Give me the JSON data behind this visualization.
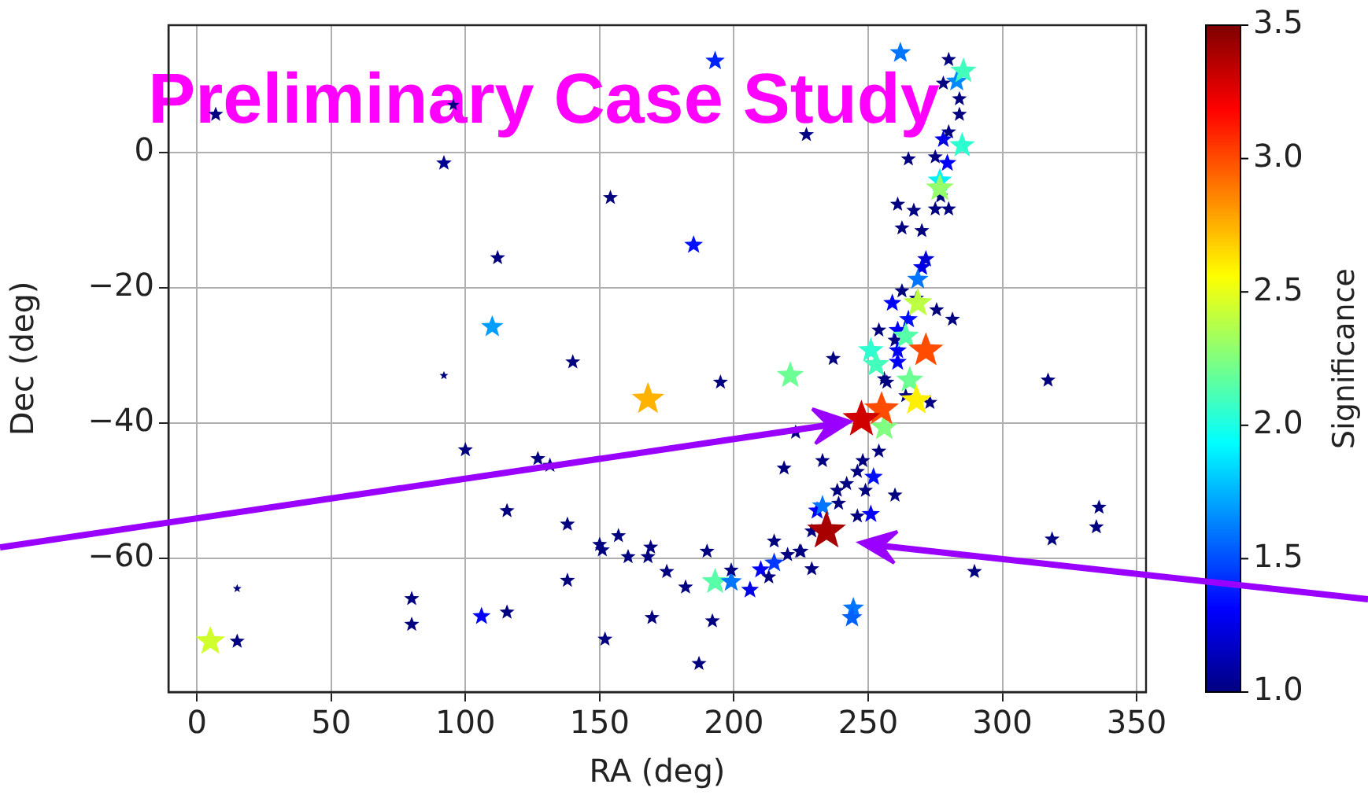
{
  "chart_data": {
    "type": "scatter",
    "xlabel": "RA (deg)",
    "ylabel": "Dec (deg)",
    "clabel": "Significance",
    "annotations": [
      "Preliminary Case Study"
    ],
    "xlim": [
      -10.6,
      353.5
    ],
    "ylim": [
      -79.8,
      18.8
    ],
    "xticks": [
      0,
      50,
      100,
      150,
      200,
      250,
      300,
      350
    ],
    "yticks": [
      {
        "value": -60,
        "label": "−60"
      },
      {
        "value": -40,
        "label": "−40"
      },
      {
        "value": -20,
        "label": "−20"
      },
      0
    ],
    "clim": [
      1,
      3.5
    ],
    "cticks": [
      {
        "value": 1,
        "label": "1.0"
      },
      {
        "value": 1.5,
        "label": "1.5"
      },
      {
        "value": 2,
        "label": "2.0"
      },
      {
        "value": 2.5,
        "label": "2.5"
      },
      {
        "value": 3,
        "label": "3.0"
      },
      {
        "value": 3.5,
        "label": "3.5"
      }
    ],
    "grid": true,
    "legend": false,
    "marker": "star",
    "series": [
      {
        "x": [
          7,
          95.5,
          92,
          112,
          110,
          193,
          262,
          227,
          154,
          185,
          92,
          140,
          195,
          168,
          221,
          237,
          100,
          115.5,
          15,
          5,
          15,
          80,
          80,
          106,
          115.5,
          127,
          131.5,
          138,
          150,
          151,
          157,
          160.6,
          169,
          168,
          175,
          182,
          190,
          193,
          199,
          199,
          138,
          152,
          169.5,
          192,
          187,
          206,
          210,
          213,
          215,
          215,
          220,
          224.5,
          229,
          231,
          218.7,
          223,
          254,
          233,
          248,
          246,
          252,
          242,
          238.5,
          260,
          249,
          239,
          233,
          251,
          246,
          229,
          225,
          289.6,
          244.5,
          244,
          317,
          336,
          335,
          318.5,
          280,
          283,
          278,
          284,
          284,
          280,
          278,
          265,
          275,
          279.5,
          277,
          261,
          267,
          275,
          280,
          262.6,
          270,
          271.5,
          270,
          268.5,
          262.6,
          268,
          275.5,
          281.4,
          259,
          265,
          254,
          261,
          260,
          261,
          261,
          264,
          273,
          256,
          257,
          285.5,
          285,
          276.7,
          276.7,
          264,
          251,
          253,
          265.5,
          256,
          268.5,
          268,
          271.5,
          255,
          247.5,
          234.5
        ],
        "values": [
          5.6,
          7,
          -1.6,
          -15.6,
          -25.8,
          13.5,
          14.7,
          2.6,
          -6.7,
          -13.7,
          -33,
          -31,
          -34,
          -36.5,
          -33,
          -30.5,
          -44,
          -53,
          -64.5,
          -72.3,
          -72.3,
          -66,
          -69.8,
          -68.6,
          -68,
          -45.3,
          -46.3,
          -55,
          -58,
          -58.8,
          -56.7,
          -59.8,
          -58.4,
          -59.8,
          -62,
          -64.3,
          -59,
          -63.5,
          -63.5,
          -61.8,
          -63.3,
          -72,
          -68.8,
          -69.3,
          -75.6,
          -64.7,
          -61.7,
          -62.8,
          -60.7,
          -57.5,
          -59.5,
          -59,
          -61.6,
          -53,
          -46.7,
          -41.4,
          -44.2,
          -45.6,
          -45.6,
          -47.2,
          -48,
          -49,
          -50,
          -50.7,
          -50,
          -51.9,
          -52.3,
          -53.5,
          -53.8,
          -56,
          -59,
          -62,
          -67.4,
          -68.8,
          -33.7,
          -52.5,
          -55.4,
          -57.2,
          13.7,
          10.5,
          10.2,
          7.9,
          5.6,
          3,
          1.9,
          -1,
          -0.7,
          -1.6,
          -6.5,
          -7.7,
          -8.6,
          -8.4,
          -8.4,
          -11.2,
          -11.6,
          -15.8,
          -17,
          -18.8,
          -20.5,
          -21.6,
          -23.3,
          -24.7,
          -22.3,
          -24.7,
          -26.3,
          -26.3,
          -27.8,
          -29.3,
          -31,
          -36,
          -37,
          -33.5,
          -34,
          12,
          1,
          -4.2,
          -5.3,
          -27.2,
          -29.3,
          -31.4,
          -33.7,
          -40.7,
          -22.3,
          -36.7,
          -29.3,
          -38,
          -39.5,
          -56
        ],
        "sizes": [
          0.15,
          0.1,
          0.16,
          0.15,
          0.33,
          0.25,
          0.3,
          0.15,
          0.15,
          0.23,
          0.05,
          0.15,
          0.15,
          0.7,
          0.49,
          0.15,
          0.15,
          0.15,
          0.05,
          0.58,
          0.15,
          0.15,
          0.15,
          0.22,
          0.15,
          0.15,
          0.15,
          0.15,
          0.15,
          0.15,
          0.15,
          0.15,
          0.15,
          0.15,
          0.15,
          0.15,
          0.15,
          0.47,
          0.3,
          0.15,
          0.15,
          0.15,
          0.15,
          0.15,
          0.15,
          0.21,
          0.22,
          0.15,
          0.26,
          0.15,
          0.15,
          0.15,
          0.15,
          0.22,
          0.15,
          0.15,
          0.15,
          0.15,
          0.15,
          0.15,
          0.23,
          0.15,
          0.15,
          0.15,
          0.15,
          0.15,
          0.3,
          0.22,
          0.15,
          0.15,
          0.15,
          0.15,
          0.3,
          0.28,
          0.15,
          0.15,
          0.15,
          0.15,
          0.15,
          0.31,
          0.15,
          0.15,
          0.15,
          0.15,
          0.21,
          0.15,
          0.15,
          0.22,
          0.15,
          0.15,
          0.15,
          0.15,
          0.15,
          0.15,
          0.15,
          0.2,
          0.21,
          0.3,
          0.15,
          0.15,
          0.15,
          0.15,
          0.22,
          0.23,
          0.15,
          0.22,
          0.15,
          0.22,
          0.22,
          0.15,
          0.15,
          0.15,
          0.15,
          0.45,
          0.43,
          0.39,
          0.52,
          0.47,
          0.43,
          0.45,
          0.49,
          0.5,
          0.56,
          0.64,
          0.8,
          0.8,
          0.94,
          1
        ],
        "cvalues": [
          1,
          1,
          1.05,
          1,
          1.7,
          1.4,
          1.6,
          1,
          1,
          1.35,
          1,
          1,
          1,
          2.75,
          2.2,
          1,
          1,
          1,
          1,
          2.45,
          1,
          1,
          1,
          1.3,
          1,
          1,
          1,
          1,
          1,
          1,
          1,
          1,
          1,
          1,
          1,
          1,
          1,
          2.15,
          1.6,
          1,
          1,
          1,
          1,
          1,
          1,
          1.25,
          1.3,
          1,
          1.45,
          1,
          1,
          1,
          1,
          1.3,
          1,
          1,
          1,
          1,
          1,
          1,
          1.35,
          1,
          1,
          1,
          1,
          1,
          1.6,
          1.3,
          1,
          1,
          1,
          1,
          1.6,
          1.55,
          1,
          1,
          1,
          1,
          1,
          1.65,
          1,
          1,
          1,
          1,
          1.25,
          1,
          1,
          1.3,
          1,
          1,
          1,
          1,
          1,
          1,
          1,
          1.2,
          1.25,
          1.6,
          1,
          1,
          1,
          1,
          1.3,
          1.35,
          1,
          1.3,
          1,
          1.3,
          1.3,
          1,
          1,
          1,
          1,
          2.1,
          2.05,
          1.9,
          2.3,
          2.15,
          2.05,
          2.1,
          2.2,
          2.25,
          2.4,
          2.6,
          3,
          3,
          3.3,
          3.4
        ]
      }
    ]
  }
}
